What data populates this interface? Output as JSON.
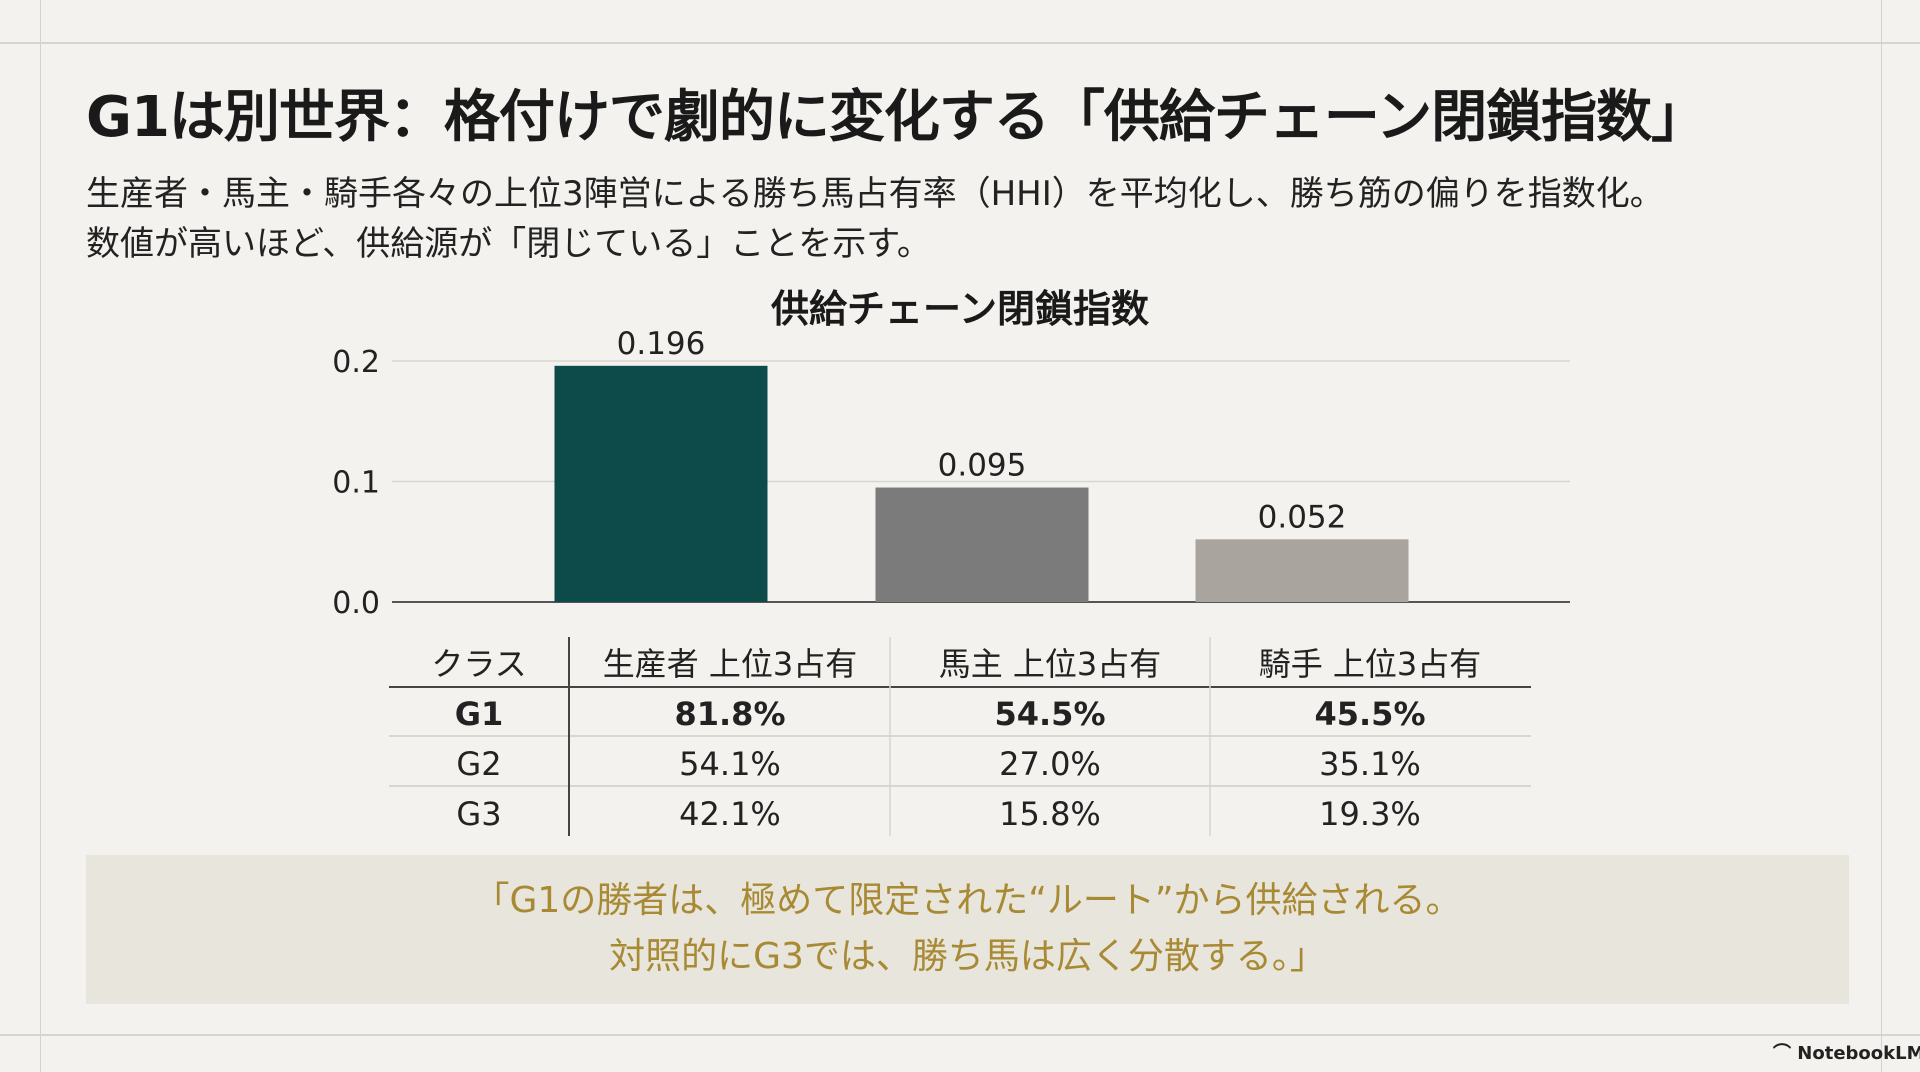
{
  "slide": {
    "title": "G1は別世界：格付けで劇的に変化する「供給チェーン閉鎖指数」",
    "subtitle_lines": [
      "生産者・馬主・騎手各々の上位3陣営による勝ち馬占有率（HHI）を平均化し、勝ち筋の偏りを指数化。",
      "数値が高いほど、供給源が「閉じている」ことを示す。"
    ],
    "quote_lines": [
      "「G1の勝者は、極めて限定された“ルート”から供給される。",
      "対照的にG3では、勝ち馬は広く分散する。」"
    ],
    "footer": "NotebookLM"
  },
  "chart_data": [
    {
      "type": "bar",
      "title": "供給チェーン閉鎖指数",
      "categories": [
        "生産者",
        "馬主",
        "騎手"
      ],
      "values": [
        0.196,
        0.095,
        0.052
      ],
      "value_labels": [
        "0.196",
        "0.095",
        "0.052"
      ],
      "colors": [
        "#0d4a4a",
        "#7b7b7b",
        "#a9a59e"
      ],
      "ylim": [
        0,
        0.2
      ],
      "yticks": [
        "0.0",
        "0.1",
        "0.2"
      ],
      "ytick_values": [
        0,
        0.1,
        0.2
      ],
      "grid": true,
      "xlabel": "",
      "ylabel": ""
    },
    {
      "type": "table",
      "columns": [
        "クラス",
        "生産者 上位3占有",
        "馬主 上位3占有",
        "騎手 上位3占有"
      ],
      "rows": [
        [
          "G1",
          "81.8%",
          "54.5%",
          "45.5%"
        ],
        [
          "G2",
          "54.1%",
          "27.0%",
          "35.1%"
        ],
        [
          "G3",
          "42.1%",
          "15.8%",
          "19.3%"
        ]
      ],
      "bold_rows": [
        0
      ]
    }
  ]
}
